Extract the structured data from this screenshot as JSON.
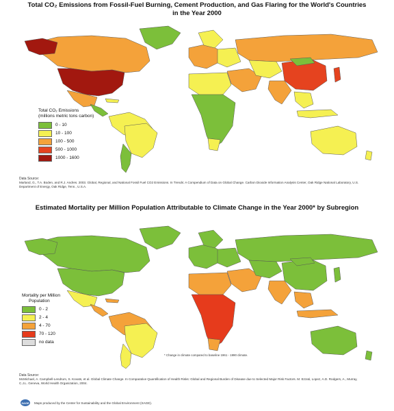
{
  "colors": {
    "ocean": "#ffffff",
    "c1": "#7cbf3a",
    "c2": "#f5f052",
    "c3": "#f4a23a",
    "c4": "#e5431f",
    "c5": "#a2180f",
    "m_nodata": "#dddddd",
    "m1": "#7cbf3a",
    "m2": "#f5f052",
    "m3": "#f4a23a",
    "m4": "#e63b1c"
  },
  "map1": {
    "title": "Total CO₂ Emissions from Fossil-Fuel Burning, Cement Production, and Gas Flaring for the World's Countries in the Year 2000",
    "legend_title_line1": "Total CO₂ Emissions",
    "legend_title_line2": "(millions metric tons carbon)",
    "legend": [
      {
        "label": "0 - 10",
        "color": "#7cbf3a"
      },
      {
        "label": "10 - 100",
        "color": "#f5f052"
      },
      {
        "label": "100 - 500",
        "color": "#f4a23a"
      },
      {
        "label": "500 - 1000",
        "color": "#e5431f"
      },
      {
        "label": "1000 - 1600",
        "color": "#a2180f"
      }
    ],
    "source_heading": "Data Source:",
    "source_text": "Marland, G., T.A. Boden, and R.J. Andres. 2003. Global, Regional, and National Fossil Fuel CO2 Emissions. In Trends: A Compendium of Data on Global Change. Carbon Dioxide Information Analysis Center, Oak Ridge National Laboratory, U.S. Department of Energy, Oak Ridge, Tenn., U.S.A."
  },
  "map2": {
    "title": "Estimated Mortality per Million Population Attributable to Climate Change in the Year 2000* by Subregion",
    "legend_title_line1": "Mortality per Million",
    "legend_title_line2": "Population",
    "legend": [
      {
        "label": "0 - 2",
        "color": "#7cbf3a"
      },
      {
        "label": "2 - 4",
        "color": "#f5f052"
      },
      {
        "label": "4 - 70",
        "color": "#f4a23a"
      },
      {
        "label": "70 - 120",
        "color": "#e63b1c"
      },
      {
        "label": "no data",
        "color": "#dddddd"
      }
    ],
    "footnote": "* Change in climate compared to baseline 1961 - 1990 climate.",
    "source_heading": "Data Source:",
    "source_text": "McMichael, A. Campbell-Lendrum, S. Kovats, et al. Global Climate Change. In Comparative Quantification of Health Risks: Global and Regional Burden of Disease due to Selected Major Risk Factors. M. Ezzati, Lopez, A.D. Rodgers, A., Murray, C.J.L. Geneva, World Health Organization, 2004.",
    "credit": "Maps produced by the Center for Sustainability and the Global Environment (SAGE)."
  }
}
